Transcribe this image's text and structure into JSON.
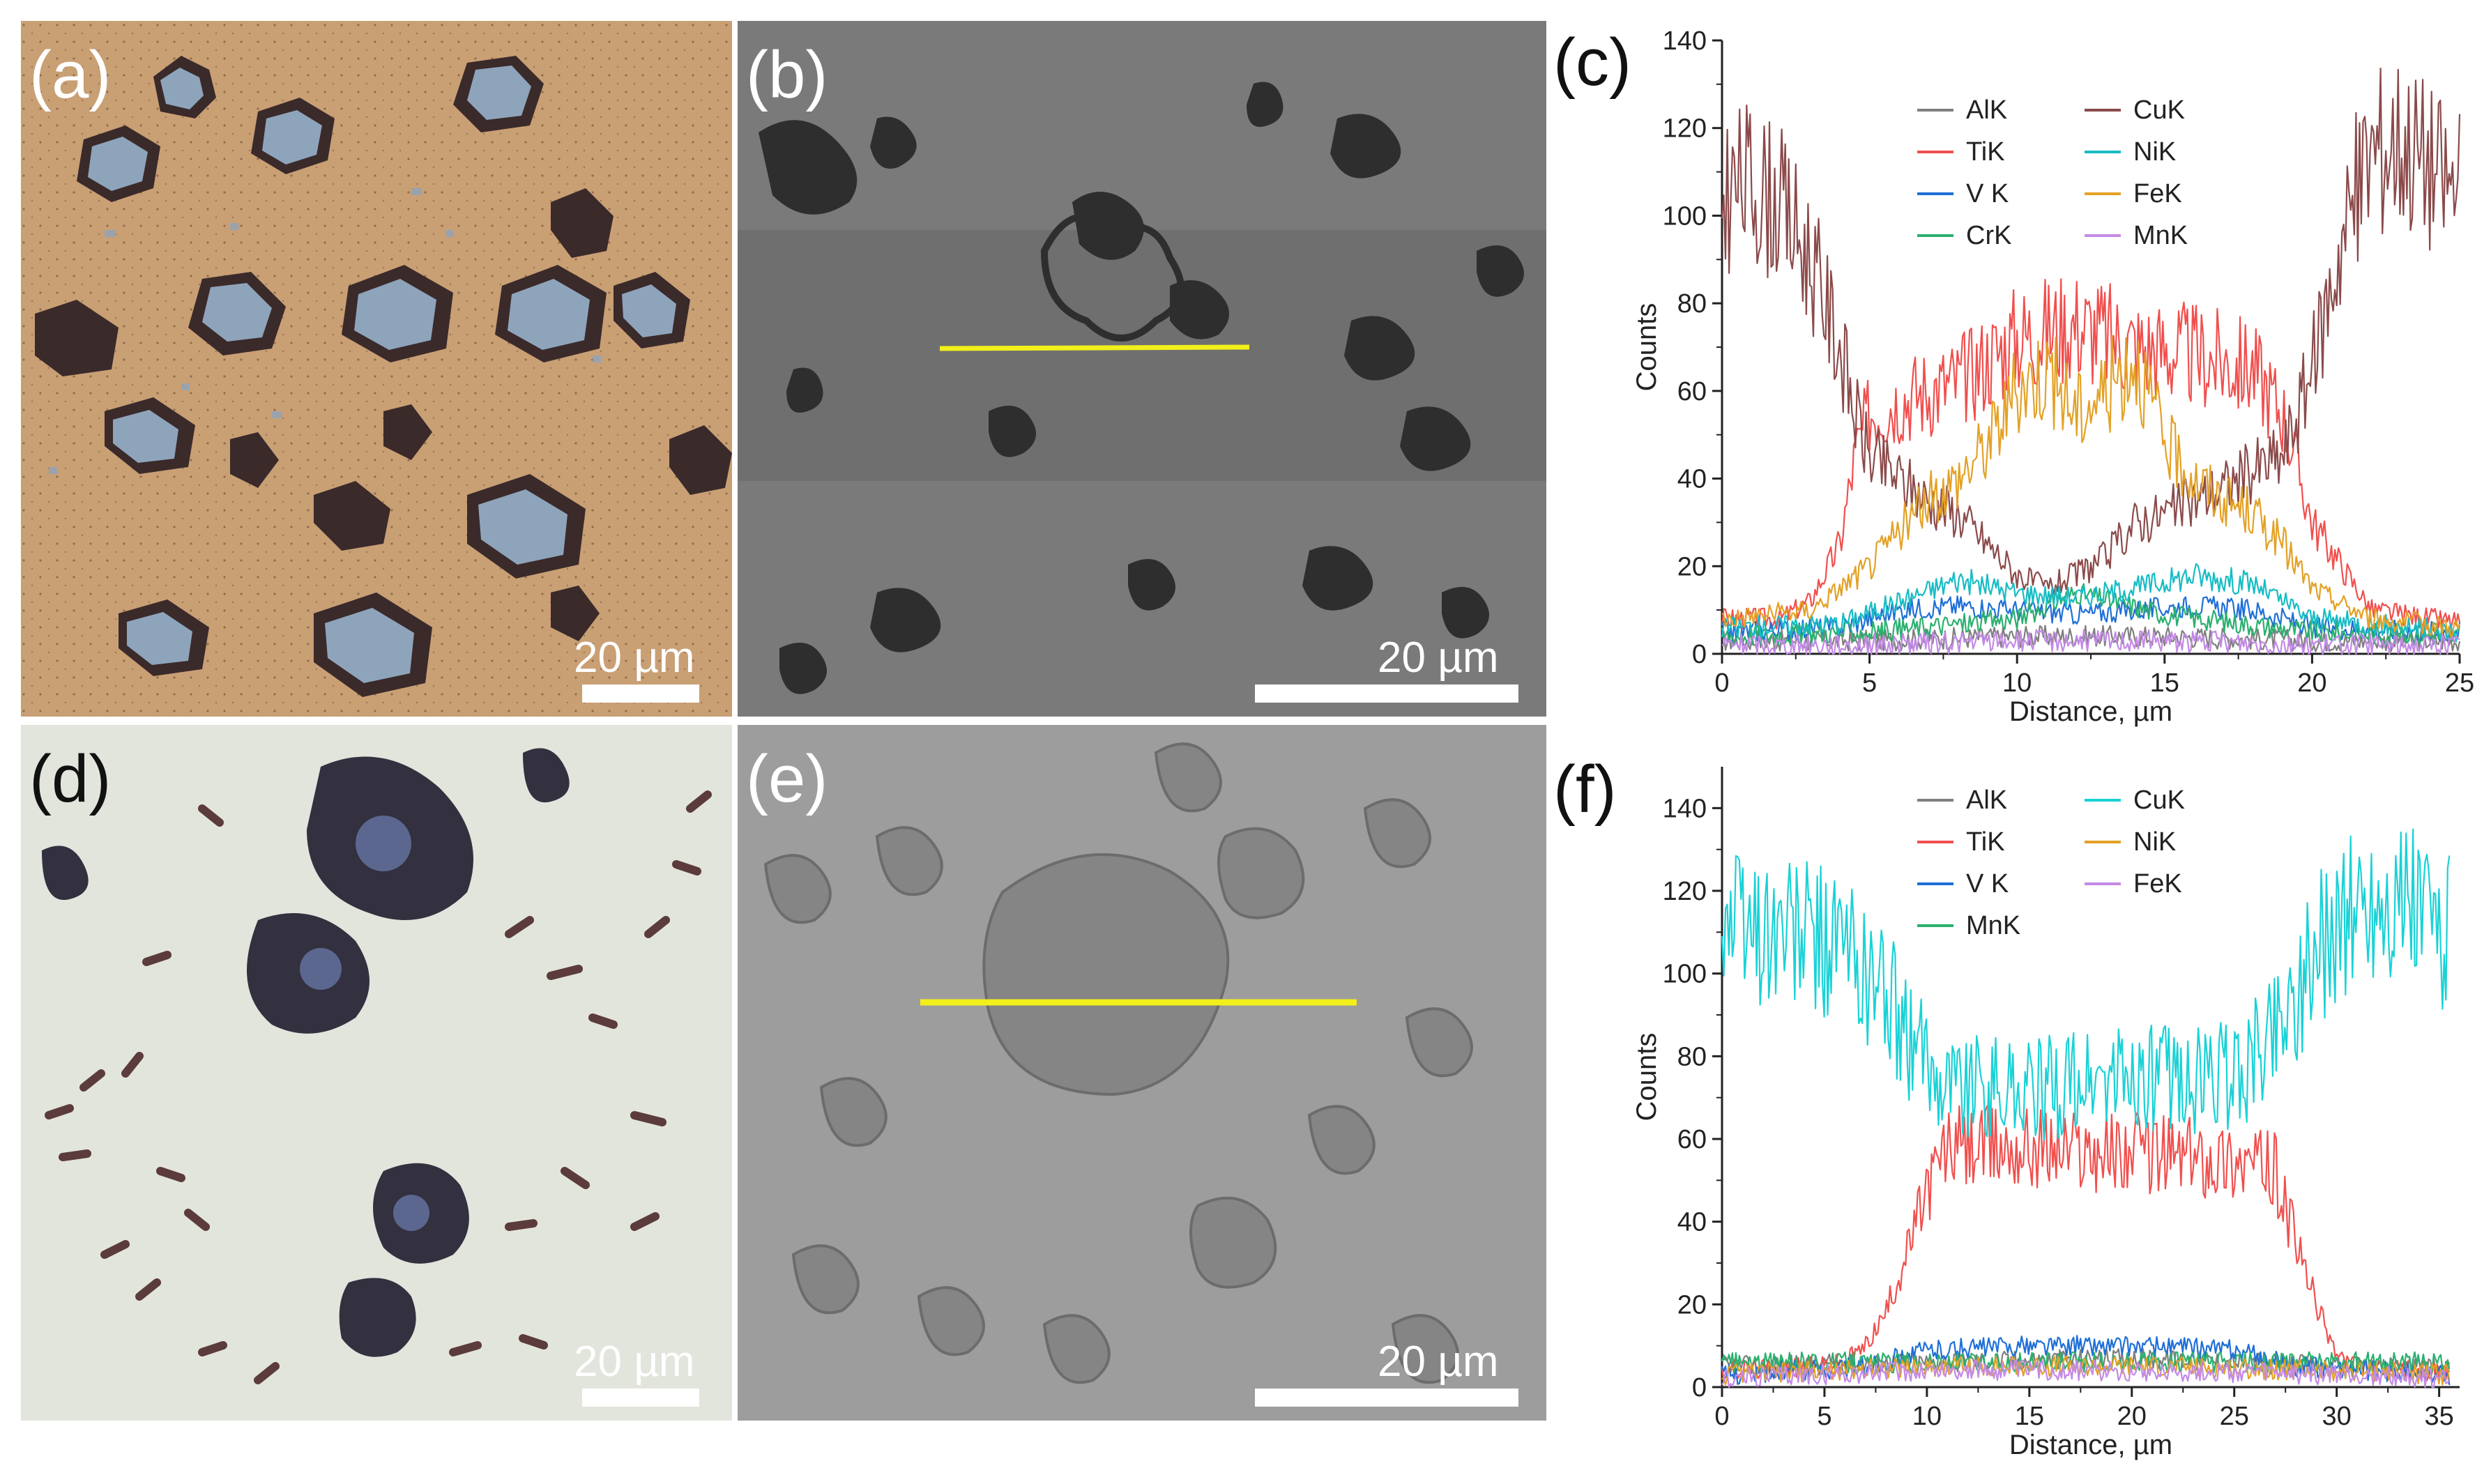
{
  "panels": {
    "a": {
      "label": "(a)",
      "scale": "20 µm"
    },
    "b": {
      "label": "(b)",
      "scale": "20 µm"
    },
    "c": {
      "label": "(c)"
    },
    "d": {
      "label": "(d)",
      "scale": "20 µm"
    },
    "e": {
      "label": "(e)",
      "scale": "20 µm"
    },
    "f": {
      "label": "(f)"
    }
  },
  "colors": {
    "AlK": "#7f7f7f",
    "TiK": "#f0504e",
    "VK": "#1f6fd6",
    "CrK": "#2ab06e",
    "CuK_c": "#8b4a4a",
    "NiK": "#18bcc4",
    "FeK_c": "#e3a126",
    "MnK_c": "#c48ae6",
    "CuK_f": "#19d2d6",
    "NiK_f": "#e3a126",
    "FeK_f": "#c48ae6",
    "MnK_f": "#2ab06e",
    "line_marker": "#f2ef1a"
  },
  "chart_data": [
    {
      "type": "line",
      "panel": "(c)",
      "xlabel": "Distance, µm",
      "ylabel": "Counts",
      "xlim": [
        0,
        25
      ],
      "ylim": [
        0,
        140
      ],
      "xticks": [
        "0",
        "5",
        "10",
        "15",
        "20",
        "25"
      ],
      "yticks": [
        "0",
        "20",
        "40",
        "60",
        "80",
        "100",
        "120",
        "140"
      ],
      "legend_position": "top-center",
      "legend": [
        "AlK",
        "TiK",
        "V K",
        "CrK",
        "CuK",
        "NiK",
        "FeK",
        "MnK"
      ],
      "series": [
        {
          "name": "AlK",
          "x": [
            0,
            5,
            10,
            15,
            20,
            25
          ],
          "values": [
            3,
            3,
            4,
            4,
            3,
            3
          ]
        },
        {
          "name": "TiK",
          "x": [
            0,
            2,
            3,
            4,
            4.5,
            5,
            6,
            8,
            10,
            12,
            14,
            16,
            18,
            19,
            20,
            22,
            25
          ],
          "values": [
            8,
            8,
            12,
            25,
            45,
            55,
            58,
            62,
            72,
            75,
            70,
            68,
            65,
            55,
            30,
            10,
            7
          ]
        },
        {
          "name": "V K",
          "x": [
            0,
            4,
            6,
            8,
            10,
            12,
            14,
            16,
            18,
            20,
            25
          ],
          "values": [
            5,
            6,
            10,
            11,
            10,
            9,
            10,
            11,
            10,
            6,
            5
          ]
        },
        {
          "name": "CrK",
          "x": [
            0,
            5,
            10,
            12,
            15,
            20,
            25
          ],
          "values": [
            4,
            5,
            8,
            14,
            9,
            5,
            4
          ]
        },
        {
          "name": "CuK",
          "x": [
            0,
            1,
            2,
            3,
            4,
            4.5,
            5,
            6,
            7,
            8,
            9,
            10,
            11,
            12,
            13,
            14,
            15,
            16,
            17,
            18,
            19,
            20,
            21,
            22,
            23,
            24,
            25
          ],
          "values": [
            105,
            108,
            102,
            90,
            70,
            55,
            45,
            40,
            35,
            32,
            25,
            18,
            15,
            18,
            22,
            30,
            32,
            35,
            38,
            42,
            45,
            65,
            95,
            115,
            118,
            112,
            105
          ]
        },
        {
          "name": "NiK",
          "x": [
            0,
            4,
            6,
            8,
            10,
            12,
            14,
            16,
            18,
            20,
            25
          ],
          "values": [
            6,
            7,
            12,
            17,
            14,
            13,
            15,
            18,
            16,
            8,
            5
          ]
        },
        {
          "name": "FeK",
          "x": [
            0,
            3,
            5,
            6,
            7,
            8,
            9,
            10,
            11,
            12,
            13,
            14,
            15,
            16,
            17,
            18,
            19,
            20,
            22,
            25
          ],
          "values": [
            8,
            10,
            20,
            28,
            35,
            40,
            48,
            60,
            65,
            55,
            60,
            68,
            48,
            40,
            35,
            32,
            25,
            15,
            8,
            6
          ]
        },
        {
          "name": "MnK",
          "x": [
            0,
            5,
            10,
            15,
            20,
            25
          ],
          "values": [
            2,
            2,
            3,
            3,
            2,
            2
          ]
        }
      ]
    },
    {
      "type": "line",
      "panel": "(f)",
      "xlabel": "Distance, µm",
      "ylabel": "Counts",
      "xlim": [
        0,
        36
      ],
      "ylim": [
        0,
        150
      ],
      "xticks": [
        "0",
        "5",
        "10",
        "15",
        "20",
        "25",
        "30",
        "35"
      ],
      "yticks": [
        "0",
        "20",
        "40",
        "60",
        "80",
        "100",
        "120",
        "140"
      ],
      "legend_position": "top-center",
      "legend": [
        "AlK",
        "TiK",
        "V K",
        "MnK",
        "CuK",
        "NiK",
        "FeK"
      ],
      "series": [
        {
          "name": "AlK",
          "x": [
            0,
            10,
            20,
            30,
            35.5
          ],
          "values": [
            5,
            6,
            7,
            5,
            5
          ]
        },
        {
          "name": "TiK",
          "x": [
            0,
            5,
            6,
            7,
            8,
            9,
            10,
            11,
            15,
            20,
            25,
            26,
            27,
            28,
            29,
            30,
            31,
            32,
            35.5
          ],
          "values": [
            4,
            5,
            6,
            10,
            18,
            32,
            48,
            58,
            58,
            57,
            55,
            54,
            52,
            35,
            20,
            8,
            5,
            4,
            4
          ]
        },
        {
          "name": "V K",
          "x": [
            0,
            7,
            10,
            15,
            20,
            25,
            28,
            35.5
          ],
          "values": [
            3,
            5,
            9,
            10,
            10,
            9,
            5,
            3
          ]
        },
        {
          "name": "MnK",
          "x": [
            0,
            10,
            20,
            30,
            35.5
          ],
          "values": [
            6,
            6,
            6,
            6,
            6
          ]
        },
        {
          "name": "CuK",
          "x": [
            0,
            2,
            4,
            6,
            8,
            9,
            10,
            12,
            15,
            20,
            25,
            26,
            27,
            28,
            29,
            30,
            32,
            34,
            35.5
          ],
          "values": [
            112,
            110,
            108,
            105,
            95,
            85,
            78,
            73,
            72,
            74,
            75,
            80,
            88,
            95,
            105,
            112,
            118,
            115,
            110
          ]
        },
        {
          "name": "NiK",
          "x": [
            0,
            10,
            20,
            30,
            35.5
          ],
          "values": [
            3,
            5,
            5,
            4,
            3
          ]
        },
        {
          "name": "FeK",
          "x": [
            0,
            10,
            20,
            30,
            35.5
          ],
          "values": [
            2,
            4,
            4,
            3,
            2
          ]
        }
      ]
    }
  ]
}
